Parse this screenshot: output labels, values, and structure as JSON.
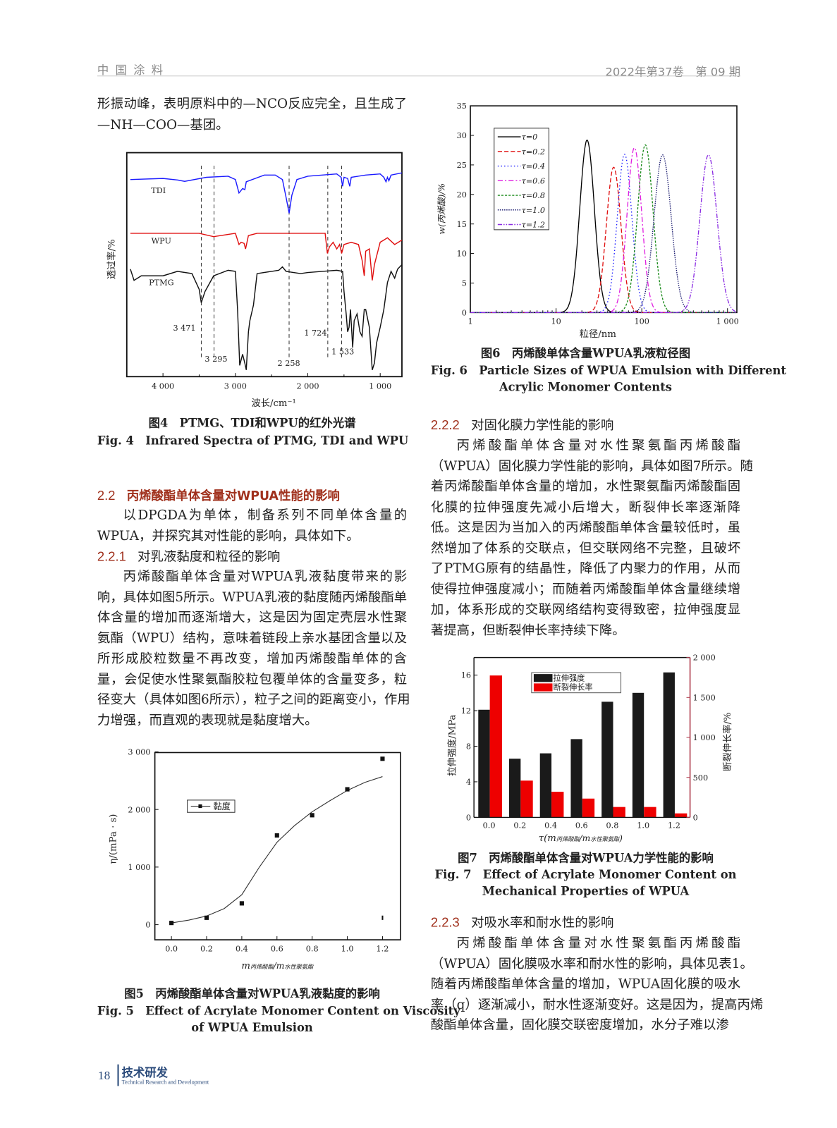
{
  "header": {
    "journal": "中 国 涂 料",
    "issue": "2022年第37卷　第 09 期"
  },
  "left": {
    "intro_lines": [
      "形振动峰，表明原料中的—NCO反应完全，且生成了",
      "—NH—COO—基团。"
    ],
    "fig4_caption_cn": "图4　PTMG、TDI和WPU的红外光谱",
    "fig4_caption_en": "Fig. 4　Infrared Spectra of PTMG, TDI and WPU",
    "sec22": {
      "num": "2.2",
      "title": "丙烯酸酯单体含量对WPUA性能的影响"
    },
    "sec22_lines": [
      "以DPGDA为单体，制备系列不同单体含量的",
      "WPUA，并探究其对性能的影响，具体如下。"
    ],
    "sec221": {
      "num": "2.2.1",
      "title": "对乳液黏度和粒径的影响"
    },
    "sec221_lines": [
      "丙烯酸酯单体含量对WPUA乳液黏度带来的影",
      "响，具体如图5所示。WPUA乳液的黏度随丙烯酸酯单",
      "体含量的增加而逐渐增大，这是因为固定壳层水性聚",
      "氨酯（WPU）结构，意味着链段上亲水基团含量以及",
      "所形成胶粒数量不再改变，增加丙烯酸酯单体的含",
      "量，会促使水性聚氨酯胶粒包覆单体的含量变多，粒",
      "径变大（具体如图6所示），粒子之间的距离变小，作用",
      "力增强，而直观的表现就是黏度增大。"
    ],
    "fig5_caption_cn": "图5　丙烯酸酯单体含量对WPUA乳液黏度的影响",
    "fig5_caption_en1": "Fig. 5　Effect of Acrylate Monomer Content on Viscosity",
    "fig5_caption_en2": "of WPUA Emulsion"
  },
  "right": {
    "fig6_caption_cn": "图6　丙烯酸单体含量WPUA乳液粒径图",
    "fig6_caption_en1": "Fig. 6　Particle Sizes of WPUA Emulsion with Different",
    "fig6_caption_en2": "Acrylic Monomer Contents",
    "sec222": {
      "num": "2.2.2",
      "title": "对固化膜力学性能的影响"
    },
    "sec222_lines": [
      "丙烯酸酯单体含量对水性聚氨酯丙烯酸酯",
      "（WPUA）固化膜力学性能的影响，具体如图7所示。随",
      "着丙烯酸酯单体含量的增加，水性聚氨酯丙烯酸酯固",
      "化膜的拉伸强度先减小后增大，断裂伸长率逐渐降",
      "低。这是因为当加入的丙烯酸酯单体含量较低时，虽",
      "然增加了体系的交联点，但交联网络不完整，且破坏",
      "了PTMG原有的结晶性，降低了内聚力的作用，从而",
      "使得拉伸强度减小；而随着丙烯酸酯单体含量继续增",
      "加，体系形成的交联网络结构变得致密，拉伸强度显",
      "著提高，但断裂伸长率持续下降。"
    ],
    "fig7_caption_cn": "图7　丙烯酸酯单体含量对WPUA力学性能的影响",
    "fig7_caption_en1": "Fig. 7　Effect of Acrylate Monomer Content on",
    "fig7_caption_en2": "Mechanical Properties of WPUA",
    "sec223": {
      "num": "2.2.3",
      "title": "对吸水率和耐水性的影响"
    },
    "sec223_lines": [
      "丙烯酸酯单体含量对水性聚氨酯丙烯酸酯",
      "（WPUA）固化膜吸水率和耐水性的影响，具体见表1。",
      "随着丙烯酸酯单体含量的增加，WPUA固化膜的吸水",
      "率（q）逐渐减小，耐水性逐渐变好。这是因为，提高丙烯",
      "酸酯单体含量，固化膜交联密度增加，水分子难以渗"
    ]
  },
  "footer": {
    "page": "18",
    "section_cn": "技术研发",
    "section_en": "Technical Research and Development"
  },
  "chart_data": [
    {
      "id": "fig4",
      "type": "line",
      "xlabel": "波长/cm⁻¹",
      "ylabel": "透过率/%",
      "xlim": [
        4500,
        700
      ],
      "x_reversed": true,
      "xticks": [
        "4 000",
        "3 000",
        "2 000",
        "1 000"
      ],
      "xtick_values": [
        4000,
        3000,
        2000,
        1000
      ],
      "y_ticks_shown": false,
      "series": [
        {
          "name": "TDI",
          "color": "#1a1aff",
          "points": [
            [
              4450,
              88
            ],
            [
              4000,
              88.5
            ],
            [
              3800,
              87.8
            ],
            [
              3700,
              87.2
            ],
            [
              3400,
              89
            ],
            [
              3100,
              89.5
            ],
            [
              3000,
              88
            ],
            [
              2950,
              82
            ],
            [
              2900,
              84
            ],
            [
              2870,
              83.5
            ],
            [
              2850,
              87
            ],
            [
              2600,
              90
            ],
            [
              2450,
              90
            ],
            [
              2350,
              88
            ],
            [
              2300,
              80
            ],
            [
              2258,
              73
            ],
            [
              2220,
              81
            ],
            [
              2150,
              88
            ],
            [
              2000,
              89.5
            ],
            [
              1800,
              90
            ],
            [
              1600,
              90.5
            ],
            [
              1540,
              89
            ],
            [
              1520,
              85
            ],
            [
              1500,
              89
            ],
            [
              1450,
              88.5
            ],
            [
              1420,
              85
            ],
            [
              1400,
              89
            ],
            [
              1200,
              90
            ],
            [
              1000,
              90.5
            ],
            [
              950,
              89
            ],
            [
              920,
              87
            ],
            [
              900,
              89
            ],
            [
              880,
              87.5
            ],
            [
              850,
              90
            ],
            [
              700,
              91
            ]
          ]
        },
        {
          "name": "WPU",
          "color": "#e01010",
          "points": [
            [
              4450,
              64
            ],
            [
              3500,
              64
            ],
            [
              3300,
              62.5
            ],
            [
              3000,
              64
            ],
            [
              2950,
              59
            ],
            [
              2920,
              60
            ],
            [
              2880,
              59.5
            ],
            [
              2860,
              57
            ],
            [
              2820,
              63
            ],
            [
              2700,
              64
            ],
            [
              1900,
              64
            ],
            [
              1760,
              64
            ],
            [
              1730,
              55
            ],
            [
              1700,
              58
            ],
            [
              1650,
              60
            ],
            [
              1600,
              57
            ],
            [
              1560,
              59
            ],
            [
              1533,
              55
            ],
            [
              1500,
              59
            ],
            [
              1400,
              60
            ],
            [
              1300,
              59
            ],
            [
              1250,
              52
            ],
            [
              1220,
              45
            ],
            [
              1200,
              56
            ],
            [
              1150,
              57
            ],
            [
              1110,
              43
            ],
            [
              1080,
              50
            ],
            [
              1000,
              60
            ],
            [
              950,
              61
            ],
            [
              900,
              62
            ],
            [
              800,
              59
            ],
            [
              700,
              61
            ]
          ]
        },
        {
          "name": "PTMG",
          "color": "#111111",
          "points": [
            [
              4450,
              48
            ],
            [
              4400,
              43
            ],
            [
              4300,
              45
            ],
            [
              4000,
              45
            ],
            [
              3800,
              47
            ],
            [
              3600,
              46
            ],
            [
              3500,
              39
            ],
            [
              3471,
              33
            ],
            [
              3420,
              38
            ],
            [
              3300,
              45
            ],
            [
              3100,
              47.5
            ],
            [
              3000,
              47
            ],
            [
              2970,
              30
            ],
            [
              2940,
              5
            ],
            [
              2900,
              10
            ],
            [
              2870,
              6
            ],
            [
              2850,
              3
            ],
            [
              2820,
              20
            ],
            [
              2800,
              25
            ],
            [
              2750,
              32
            ],
            [
              2700,
              46
            ],
            [
              2500,
              47
            ],
            [
              2400,
              47.5
            ],
            [
              2350,
              49
            ],
            [
              2300,
              47
            ],
            [
              2100,
              46
            ],
            [
              2000,
              46.5
            ],
            [
              1800,
              47
            ],
            [
              1600,
              47.5
            ],
            [
              1520,
              47
            ],
            [
              1500,
              38
            ],
            [
              1470,
              28
            ],
            [
              1450,
              20
            ],
            [
              1430,
              22
            ],
            [
              1410,
              30
            ],
            [
              1380,
              13
            ],
            [
              1360,
              25
            ],
            [
              1320,
              28
            ],
            [
              1280,
              20
            ],
            [
              1250,
              18
            ],
            [
              1220,
              30
            ],
            [
              1200,
              30
            ],
            [
              1150,
              22
            ],
            [
              1110,
              3
            ],
            [
              1080,
              6
            ],
            [
              1050,
              15
            ],
            [
              1000,
              22
            ],
            [
              950,
              30
            ],
            [
              900,
              42
            ],
            [
              850,
              47
            ],
            [
              800,
              44
            ],
            [
              760,
              48
            ],
            [
              700,
              50
            ]
          ]
        }
      ],
      "annotations": [
        {
          "x": 3471,
          "label": "3 471"
        },
        {
          "x": 3295,
          "label": "3 295"
        },
        {
          "x": 2258,
          "label": "2 258"
        },
        {
          "x": 1724,
          "label": "1 724"
        },
        {
          "x": 1533,
          "label": "1 533"
        }
      ]
    },
    {
      "id": "fig5",
      "type": "scatter",
      "xlabel": "m丙烯酸酯/m水性聚氨酯",
      "xlabel_main": "m",
      "xlabel_sub1": "丙烯酸酯",
      "xlabel_sep": "/m",
      "xlabel_sub2": "水性聚氨酯",
      "ylabel": "η/(mPa · s)",
      "xlim": [
        -0.09,
        1.3
      ],
      "ylim": [
        -260,
        3000
      ],
      "xticks": [
        "0.0",
        "0.2",
        "0.4",
        "0.6",
        "0.8",
        "1.0",
        "1.2"
      ],
      "yticks": [
        "0",
        "1 000",
        "2 000",
        "3 000"
      ],
      "ytick_values": [
        0,
        1000,
        2000,
        3000
      ],
      "legend": "黏度",
      "legend_position": "upper-left",
      "series": [
        {
          "name": "黏度",
          "x": [
            0.0,
            0.2,
            0.4,
            0.6,
            0.8,
            1.0,
            1.2
          ],
          "y": [
            30,
            120,
            370,
            1550,
            1900,
            2350,
            2880
          ]
        }
      ],
      "fit_curve": {
        "x": [
          0.0,
          0.1,
          0.2,
          0.3,
          0.4,
          0.5,
          0.6,
          0.7,
          0.8,
          0.9,
          1.0,
          1.1,
          1.2
        ],
        "y": [
          30,
          80,
          150,
          280,
          520,
          1000,
          1430,
          1720,
          1960,
          2150,
          2330,
          2470,
          2570
        ]
      }
    },
    {
      "id": "fig6",
      "type": "line",
      "xlabel": "粒径/nm",
      "ylabel": "w(丙烯酸)/%",
      "x_scale": "log",
      "xlim": [
        1,
        1280
      ],
      "ylim": [
        0,
        35
      ],
      "xticks": [
        "1",
        "10",
        "100",
        "1 000"
      ],
      "xtick_values": [
        1,
        10,
        100,
        1000
      ],
      "yticks": [
        "0",
        "5",
        "10",
        "15",
        "20",
        "25",
        "30",
        "35"
      ],
      "legend_position": "upper-left",
      "series": [
        {
          "name": "τ=0",
          "peak_size_nm": 23,
          "peak_value": 29.2,
          "color": "#000000",
          "dash": "solid"
        },
        {
          "name": "τ=0.2",
          "peak_size_nm": 47,
          "peak_value": 24.6,
          "color": "#e01010",
          "dash": "dashed"
        },
        {
          "name": "τ=0.4",
          "peak_size_nm": 63,
          "peak_value": 26.8,
          "color": "#1a1aff",
          "dash": "dotted"
        },
        {
          "name": "τ=0.6",
          "peak_size_nm": 82,
          "peak_value": 27.9,
          "color": "#e020e0",
          "dash": "dash-dot"
        },
        {
          "name": "τ=0.8",
          "peak_size_nm": 110,
          "peak_value": 28.4,
          "color": "#1a8a1a",
          "dash": "short-dash"
        },
        {
          "name": "τ=1.0",
          "peak_size_nm": 175,
          "peak_value": 26.7,
          "color": "#1a1a6e",
          "dash": "short-dot"
        },
        {
          "name": "τ=1.2",
          "peak_size_nm": 600,
          "peak_value": 26.7,
          "color": "#8a2be2",
          "dash": "dash-dot-dot"
        }
      ]
    },
    {
      "id": "fig7",
      "type": "bar",
      "xlabel_main": "τ(m",
      "xlabel_sub1": "丙烯酸酯",
      "xlabel_sep": "/m",
      "xlabel_sub2": "水性聚氨酯",
      "xlabel_end": ")",
      "ylabel_left": "拉伸强度/MPa",
      "ylabel_right": "断裂伸长率/%",
      "categories": [
        "0.0",
        "0.2",
        "0.4",
        "0.6",
        "0.8",
        "1.0",
        "1.2"
      ],
      "ylim_left": [
        0,
        18
      ],
      "ylim_right": [
        0,
        2000
      ],
      "yticks_left": [
        "0",
        "4",
        "8",
        "12",
        "16"
      ],
      "yticks_right": [
        "0",
        "500",
        "1 000",
        "1 500",
        "2 000"
      ],
      "legend_position": "top-center",
      "series": [
        {
          "name": "拉伸强度",
          "axis": "left",
          "color": "#1a1a1a",
          "values": [
            12.1,
            6.6,
            7.2,
            8.8,
            13.0,
            14.0,
            16.3
          ]
        },
        {
          "name": "断裂伸长率",
          "axis": "right",
          "color": "#ee0000",
          "values": [
            1775,
            460,
            320,
            235,
            130,
            130,
            50
          ]
        }
      ],
      "right_axis_color": "#b04050"
    }
  ]
}
